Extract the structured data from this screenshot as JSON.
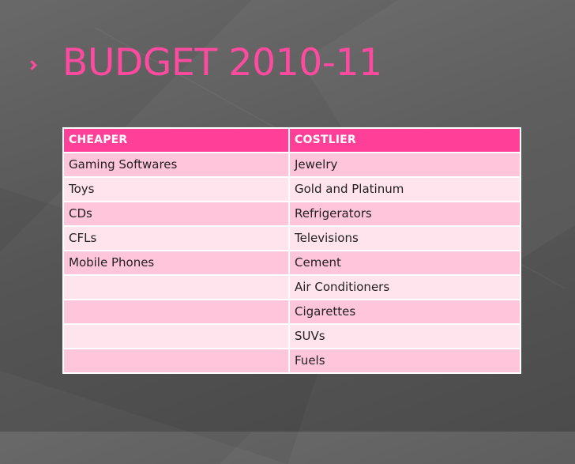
{
  "slide": {
    "title": "BUDGET 2010-11"
  },
  "table": {
    "headers": [
      "CHEAPER",
      "COSTLIER"
    ],
    "rows": [
      [
        "Gaming Softwares",
        "Jewelry"
      ],
      [
        "Toys",
        "Gold and Platinum"
      ],
      [
        "CDs",
        "Refrigerators"
      ],
      [
        "CFLs",
        "Televisions"
      ],
      [
        "Mobile Phones",
        "Cement"
      ],
      [
        "",
        "Air Conditioners"
      ],
      [
        "",
        "Cigarettes"
      ],
      [
        "",
        "SUVs"
      ],
      [
        "",
        "Fuels"
      ]
    ]
  },
  "icons": {
    "title_bullet": "chevron-right-icon"
  },
  "colors": {
    "accent": "#ff4aa0",
    "header_fill": "#ff3f98",
    "row_fill_dark": "#ffc5da",
    "row_fill_light": "#ffe3ed",
    "background": "#5a5a5a"
  }
}
